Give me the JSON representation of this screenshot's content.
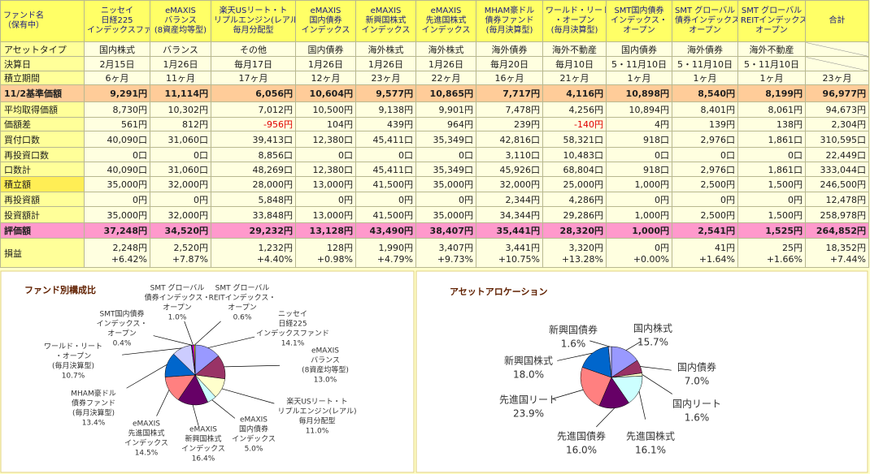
{
  "table": {
    "header": [
      [
        "ファンド名",
        "（保有中）"
      ],
      [
        "ニッセイ",
        "日経225",
        "インデックスファンド"
      ],
      [
        "eMAXIS",
        "バランス",
        "(8資産均等型)"
      ],
      [
        "楽天USリート・ト",
        "リプルエンジン(レアル)",
        "毎月分配型"
      ],
      [
        "eMAXIS",
        "国内債券",
        "インデックス"
      ],
      [
        "eMAXIS",
        "新興国株式",
        "インデックス"
      ],
      [
        "eMAXIS",
        "先進国株式",
        "インデックス"
      ],
      [
        "MHAM豪ドル",
        "債券ファンド",
        "(毎月決算型)"
      ],
      [
        "ワールド・リート",
        "・オープン",
        "(毎月決算型)"
      ],
      [
        "SMT国内債券",
        "インデックス・",
        "オープン"
      ],
      [
        "SMT グローバル",
        "債券インデックス・",
        "オープン"
      ],
      [
        "SMT グローバル",
        "REITインデックス・",
        "オープン"
      ],
      [
        "合計"
      ]
    ],
    "rows": [
      {
        "label": "アセットタイプ",
        "cells": [
          "国内株式",
          "バランス",
          "その他",
          "国内債券",
          "海外株式",
          "海外株式",
          "海外債券",
          "海外不動産",
          "国内債券",
          "海外債券",
          "海外不動産",
          null
        ]
      },
      {
        "label": "決算日",
        "cells": [
          "2月15日",
          "1月26日",
          "毎月17日",
          "1月26日",
          "1月26日",
          "1月26日",
          "毎月20日",
          "毎月10日",
          "5・11月10日",
          "5・11月10日",
          "5・11月10日",
          null
        ]
      },
      {
        "label": "積立期間",
        "cells": [
          "6ヶ月",
          "11ヶ月",
          "17ヶ月",
          "12ヶ月",
          "23ヶ月",
          "22ヶ月",
          "16ヶ月",
          "21ヶ月",
          "1ヶ月",
          "1ヶ月",
          "1ヶ月",
          "23ヶ月"
        ]
      },
      {
        "label": "11/2基準価額",
        "cells": [
          "9,291円",
          "11,114円",
          "6,056円",
          "10,604円",
          "9,577円",
          "10,865円",
          "7,717円",
          "4,116円",
          "10,898円",
          "8,540円",
          "8,199円",
          "96,977円"
        ]
      },
      {
        "label": "平均取得価額",
        "cells": [
          "8,730円",
          "10,302円",
          "7,012円",
          "10,500円",
          "9,138円",
          "9,901円",
          "7,478円",
          "4,256円",
          "10,894円",
          "8,401円",
          "8,061円",
          "94,673円"
        ]
      },
      {
        "label": "価額差",
        "cells": [
          "561円",
          "812円",
          "-956円",
          "104円",
          "439円",
          "964円",
          "239円",
          "-140円",
          "4円",
          "139円",
          "138円",
          "2,304円"
        ]
      },
      {
        "label": "買付口数",
        "cells": [
          "40,090口",
          "31,060口",
          "39,413口",
          "12,380口",
          "45,411口",
          "35,349口",
          "42,816口",
          "58,321口",
          "918口",
          "2,976口",
          "1,861口",
          "310,595口"
        ]
      },
      {
        "label": "再投資口数",
        "cells": [
          "0口",
          "0口",
          "8,856口",
          "0口",
          "0口",
          "0口",
          "3,110口",
          "10,483口",
          "0口",
          "0口",
          "0口",
          "22,449口"
        ]
      },
      {
        "label": "口数計",
        "cells": [
          "40,090口",
          "31,060口",
          "48,269口",
          "12,380口",
          "45,411口",
          "35,349口",
          "45,926口",
          "68,804口",
          "918口",
          "2,976口",
          "1,861口",
          "333,044口"
        ]
      },
      {
        "label": "積立額",
        "cells": [
          "35,000円",
          "32,000円",
          "28,000円",
          "13,000円",
          "41,500円",
          "35,000円",
          "32,000円",
          "25,000円",
          "1,000円",
          "2,500円",
          "1,500円",
          "246,500円"
        ]
      },
      {
        "label": "再投資額",
        "cells": [
          "0円",
          "0円",
          "5,848円",
          "0円",
          "0円",
          "0円",
          "2,344円",
          "4,286円",
          "0円",
          "0円",
          "0円",
          "12,478円"
        ]
      },
      {
        "label": "投資額計",
        "cells": [
          "35,000円",
          "32,000円",
          "33,848円",
          "13,000円",
          "41,500円",
          "35,000円",
          "34,344円",
          "29,286円",
          "1,000円",
          "2,500円",
          "1,500円",
          "258,978円"
        ]
      },
      {
        "label": "評価額",
        "cells": [
          "37,248円",
          "34,520円",
          "29,232円",
          "13,128円",
          "43,490円",
          "38,407円",
          "35,441円",
          "28,320円",
          "1,000円",
          "2,541円",
          "1,525円",
          "264,852円"
        ]
      },
      {
        "label": "損益",
        "cells": [
          [
            "2,248円",
            "+6.42%"
          ],
          [
            "2,520円",
            "+7.87%"
          ],
          [
            "1,232円",
            "+4.40%"
          ],
          [
            "128円",
            "+0.98%"
          ],
          [
            "1,990円",
            "+4.79%"
          ],
          [
            "3,407円",
            "+9.73%"
          ],
          [
            "3,441円",
            "+10.75%"
          ],
          [
            "3,320円",
            "+13.28%"
          ],
          [
            "0円",
            "+0.00%"
          ],
          [
            "41円",
            "+1.64%"
          ],
          [
            "25円",
            "+1.66%"
          ],
          [
            "18,352円",
            "+7.44%"
          ]
        ]
      }
    ]
  },
  "chart_data": [
    {
      "type": "pie",
      "title": "ファンド別構成比",
      "categories": [
        [
          "ニッセイ",
          "日経225",
          "インデックスファンド"
        ],
        [
          "eMAXIS",
          "バランス",
          "(8資産均等型)"
        ],
        [
          "楽天USリート・ト",
          "リプルエンジン(レアル)",
          "毎月分配型"
        ],
        [
          "eMAXIS",
          "国内債券",
          "インデックス"
        ],
        [
          "eMAXIS",
          "新興国株式",
          "インデックス"
        ],
        [
          "eMAXIS",
          "先進国株式",
          "インデックス"
        ],
        [
          "MHAM豪ドル",
          "債券ファンド",
          "(毎月決算型)"
        ],
        [
          "ワールド・リート",
          "・オープン",
          "(毎月決算型)"
        ],
        [
          "SMT国内債券",
          "インデックス・",
          "オープン"
        ],
        [
          "SMT グローバル",
          "債券インデックス・",
          "オープン"
        ],
        [
          "SMT グローバル",
          "REITインデックス・",
          "オープン"
        ]
      ],
      "values": [
        14.1,
        13.0,
        11.0,
        5.0,
        16.4,
        14.5,
        13.4,
        10.7,
        0.4,
        1.0,
        0.6
      ],
      "value_labels": [
        "14.1%",
        "13.0%",
        "11.0%",
        "5.0%",
        "16.4%",
        "14.5%",
        "13.4%",
        "10.7%",
        "0.4%",
        "1.0%",
        "0.6%"
      ],
      "colors": [
        "#9999ff",
        "#993366",
        "#ffffcc",
        "#ccffff",
        "#660066",
        "#ff8080",
        "#0066cc",
        "#ccccff",
        "#000080",
        "#ff00ff",
        "#ffff00"
      ]
    },
    {
      "type": "pie",
      "title": "アセットアロケーション",
      "categories": [
        "国内株式",
        "国内債券",
        "国内リート",
        "先進国株式",
        "先進国債券",
        "先進国リート",
        "新興国株式",
        "新興国債券"
      ],
      "values": [
        15.7,
        7.0,
        1.6,
        16.1,
        16.0,
        23.9,
        18.0,
        1.6
      ],
      "value_labels": [
        "15.7%",
        "7.0%",
        "1.6%",
        "16.1%",
        "16.0%",
        "23.9%",
        "18.0%",
        "1.6%"
      ],
      "colors": [
        "#9999ff",
        "#993366",
        "#ffffcc",
        "#ccffff",
        "#660066",
        "#ff8080",
        "#0066cc",
        "#ccccff"
      ]
    }
  ]
}
